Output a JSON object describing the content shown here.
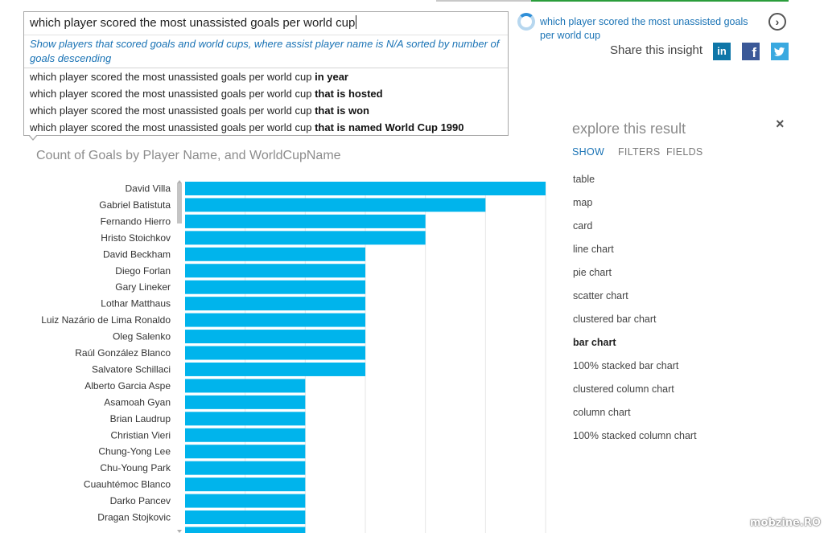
{
  "query": {
    "input_value": "which player scored the most unassisted goals per world cup",
    "restatement": "Show players that scored goals and world cups, where assist player name is N/A sorted by number of goals descending",
    "suggestions": [
      {
        "base": "which player scored the most unassisted goals per world cup",
        "completion": "in year"
      },
      {
        "base": "which player scored the most unassisted goals per world cup",
        "completion": "that is hosted"
      },
      {
        "base": "which player scored the most unassisted goals per world cup",
        "completion": "that is won"
      },
      {
        "base": "which player scored the most unassisted goals per world cup",
        "completion": "that is named World Cup 1990"
      }
    ]
  },
  "insight": {
    "title": "which player scored the most unassisted goals per world cup",
    "next_icon": "chevron-right-circle-icon",
    "share_label": "Share this insight",
    "social": [
      {
        "name": "linkedin",
        "glyph": "in",
        "color": "#0e76a8"
      },
      {
        "name": "facebook",
        "glyph": "f",
        "color": "#3b5998"
      },
      {
        "name": "twitter",
        "glyph": "t",
        "color": "#3aa9e0"
      }
    ]
  },
  "explore": {
    "title": "explore this result",
    "close_glyph": "×",
    "tabs": [
      {
        "label": "SHOW",
        "active": true
      },
      {
        "label": "FILTERS",
        "active": false
      },
      {
        "label": "FIELDS",
        "active": false
      }
    ],
    "visualizations": [
      {
        "label": "table",
        "selected": false
      },
      {
        "label": "map",
        "selected": false
      },
      {
        "label": "card",
        "selected": false
      },
      {
        "label": "line chart",
        "selected": false
      },
      {
        "label": "pie chart",
        "selected": false
      },
      {
        "label": "scatter chart",
        "selected": false
      },
      {
        "label": "clustered bar chart",
        "selected": false
      },
      {
        "label": "bar chart",
        "selected": true
      },
      {
        "label": "100% stacked bar chart",
        "selected": false
      },
      {
        "label": "clustered column chart",
        "selected": false
      },
      {
        "label": "column chart",
        "selected": false
      },
      {
        "label": "100% stacked column chart",
        "selected": false
      }
    ]
  },
  "colors": {
    "bar": "#00b4ec",
    "accent": "#1a73b5",
    "gridline": "#e6e6e6"
  },
  "chart_data": {
    "type": "bar",
    "orientation": "horizontal",
    "title": "Count of Goals by Player Name, and WorldCupName",
    "categories": [
      "David Villa",
      "Gabriel Batistuta",
      "Fernando Hierro",
      "Hristo Stoichkov",
      "David Beckham",
      "Diego Forlan",
      "Gary Lineker",
      "Lothar Matthaus",
      "Luiz Nazário de Lima Ronaldo",
      "Oleg Salenko",
      "Raúl González Blanco",
      "Salvatore Schillaci",
      "Alberto Garcia Aspe",
      "Asamoah Gyan",
      "Brian Laudrup",
      "Christian Vieri",
      "Chung-Yong Lee",
      "Chu-Young Park",
      "Cuauhtémoc Blanco",
      "Darko Pancev",
      "Dragan Stojkovic"
    ],
    "values": [
      6,
      5,
      4,
      4,
      3,
      3,
      3,
      3,
      3,
      3,
      3,
      3,
      2,
      2,
      2,
      2,
      2,
      2,
      2,
      2,
      2
    ],
    "xlim": [
      0,
      6
    ],
    "grid": true,
    "legend": "none",
    "more_rows_below": true
  }
}
